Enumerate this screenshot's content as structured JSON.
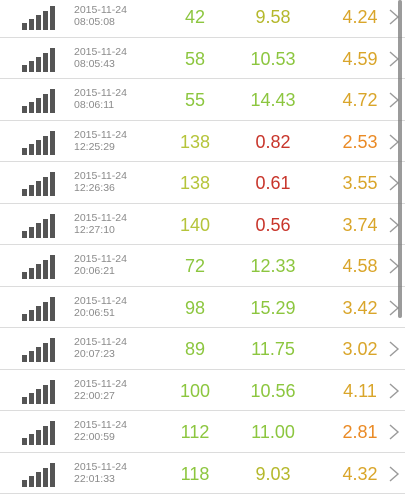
{
  "colors": {
    "green": "#8cc63f",
    "yellow_green": "#b5b82c",
    "gold": "#d9a52a",
    "orange": "#ea8a25",
    "red": "#c8352b",
    "signal_bar": "#555555",
    "timestamp_text": "#8a8a8a",
    "chevron": "#9a9a9a"
  },
  "rows": [
    {
      "date": "2015-11-24",
      "time": "08:05:08",
      "v1": "42",
      "v2": "9.58",
      "v3": "4.24",
      "c1": "#8cc63f",
      "c2": "#b5b82c",
      "c3": "#d9a52a"
    },
    {
      "date": "2015-11-24",
      "time": "08:05:43",
      "v1": "58",
      "v2": "10.53",
      "v3": "4.59",
      "c1": "#8cc63f",
      "c2": "#8cc63f",
      "c3": "#d9a52a"
    },
    {
      "date": "2015-11-24",
      "time": "08:06:11",
      "v1": "55",
      "v2": "14.43",
      "v3": "4.72",
      "c1": "#8cc63f",
      "c2": "#8cc63f",
      "c3": "#d9a52a"
    },
    {
      "date": "2015-11-24",
      "time": "12:25:29",
      "v1": "138",
      "v2": "0.82",
      "v3": "2.53",
      "c1": "#b5c43a",
      "c2": "#c8352b",
      "c3": "#ea8a25"
    },
    {
      "date": "2015-11-24",
      "time": "12:26:36",
      "v1": "138",
      "v2": "0.61",
      "v3": "3.55",
      "c1": "#b5c43a",
      "c2": "#c8352b",
      "c3": "#d9a52a"
    },
    {
      "date": "2015-11-24",
      "time": "12:27:10",
      "v1": "140",
      "v2": "0.56",
      "v3": "3.74",
      "c1": "#b5c43a",
      "c2": "#c8352b",
      "c3": "#d9a52a"
    },
    {
      "date": "2015-11-24",
      "time": "20:06:21",
      "v1": "72",
      "v2": "12.33",
      "v3": "4.58",
      "c1": "#8cc63f",
      "c2": "#8cc63f",
      "c3": "#d9a52a"
    },
    {
      "date": "2015-11-24",
      "time": "20:06:51",
      "v1": "98",
      "v2": "15.29",
      "v3": "3.42",
      "c1": "#8cc63f",
      "c2": "#8cc63f",
      "c3": "#d9a52a"
    },
    {
      "date": "2015-11-24",
      "time": "20:07:23",
      "v1": "89",
      "v2": "11.75",
      "v3": "3.02",
      "c1": "#8cc63f",
      "c2": "#8cc63f",
      "c3": "#d9a52a"
    },
    {
      "date": "2015-11-24",
      "time": "22:00:27",
      "v1": "100",
      "v2": "10.56",
      "v3": "4.11",
      "c1": "#8cc63f",
      "c2": "#8cc63f",
      "c3": "#d9a52a"
    },
    {
      "date": "2015-11-24",
      "time": "22:00:59",
      "v1": "112",
      "v2": "11.00",
      "v3": "2.81",
      "c1": "#8cc63f",
      "c2": "#8cc63f",
      "c3": "#ea8a25"
    },
    {
      "date": "2015-11-24",
      "time": "22:01:33",
      "v1": "118",
      "v2": "9.03",
      "v3": "4.32",
      "c1": "#8cc63f",
      "c2": "#b5b82c",
      "c3": "#d9a52a"
    }
  ],
  "icons": {
    "signal": "signal-strength-icon",
    "chevron": "chevron-right-icon"
  }
}
